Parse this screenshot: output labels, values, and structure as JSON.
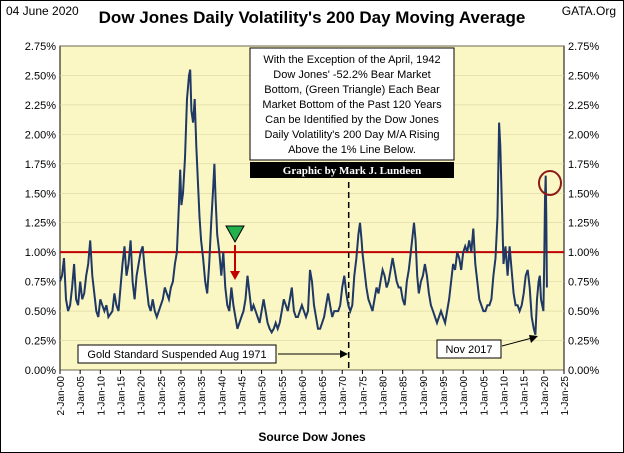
{
  "header": {
    "date": "04 June 2020",
    "title": "Dow Jones Daily Volatility's 200 Day Moving Average",
    "source": "GATA.Org"
  },
  "annotations": {
    "box_lines": [
      "With the Exception of the April, 1942",
      "Dow Jones' -52.2% Bear Market",
      "Bottom, (Green Triangle) Each Bear",
      "Market Bottom of the Past 120 Years",
      "Can be Identified by the Dow Jones",
      "Daily Volatility's 200 Day M/A Rising",
      "Above the 1% Line Below."
    ],
    "credit": "Graphic by Mark J. Lundeen",
    "gold": "Gold Standard Suspended Aug 1971",
    "nov": "Nov 2017"
  },
  "chart_data": {
    "type": "line",
    "xlabel": "Source Dow Jones",
    "ylabel": "",
    "x_tick_labels": [
      "2-Jan-00",
      "1-Jan-05",
      "1-Jan-10",
      "1-Jan-15",
      "1-Jan-20",
      "1-Jan-25",
      "1-Jan-30",
      "1-Jan-35",
      "1-Jan-40",
      "1-Jan-45",
      "1-Jan-50",
      "1-Jan-55",
      "1-Jan-60",
      "1-Jan-65",
      "1-Jan-70",
      "1-Jan-75",
      "1-Jan-80",
      "1-Jan-85",
      "1-Jan-90",
      "1-Jan-95",
      "1-Jan-00",
      "1-Jan-05",
      "1-Jan-10",
      "1-Jan-15",
      "1-Jan-20",
      "1-Jan-25"
    ],
    "x_tick_years": [
      1900,
      1905,
      1910,
      1915,
      1920,
      1925,
      1930,
      1935,
      1940,
      1945,
      1950,
      1955,
      1960,
      1965,
      1970,
      1975,
      1980,
      1985,
      1990,
      1995,
      2000,
      2005,
      2010,
      2015,
      2020,
      2025
    ],
    "xlim": [
      1900,
      2025
    ],
    "y_tick_labels": [
      "0.00%",
      "0.25%",
      "0.50%",
      "0.75%",
      "1.00%",
      "1.25%",
      "1.50%",
      "1.75%",
      "2.00%",
      "2.25%",
      "2.50%",
      "2.75%"
    ],
    "ylim": [
      0,
      2.75
    ],
    "reference_line": {
      "y": 1.0,
      "color": "#c00000"
    },
    "vertical_marker_year": 1971.6,
    "series": [
      {
        "color": "#1f3864",
        "points": [
          [
            1900,
            0.75
          ],
          [
            1900.5,
            0.8
          ],
          [
            1901,
            0.95
          ],
          [
            1901.5,
            0.6
          ],
          [
            1902,
            0.5
          ],
          [
            1902.5,
            0.55
          ],
          [
            1903,
            0.7
          ],
          [
            1903.5,
            0.9
          ],
          [
            1904,
            0.6
          ],
          [
            1904.5,
            0.55
          ],
          [
            1905,
            0.75
          ],
          [
            1905.5,
            0.6
          ],
          [
            1906,
            0.65
          ],
          [
            1906.5,
            0.8
          ],
          [
            1907,
            0.9
          ],
          [
            1907.5,
            1.1
          ],
          [
            1908,
            0.8
          ],
          [
            1908.5,
            0.65
          ],
          [
            1909,
            0.5
          ],
          [
            1909.5,
            0.45
          ],
          [
            1910,
            0.6
          ],
          [
            1910.5,
            0.55
          ],
          [
            1911,
            0.5
          ],
          [
            1911.5,
            0.55
          ],
          [
            1912,
            0.45
          ],
          [
            1913,
            0.5
          ],
          [
            1913.5,
            0.65
          ],
          [
            1914,
            0.55
          ],
          [
            1914.5,
            0.5
          ],
          [
            1915,
            0.7
          ],
          [
            1915.5,
            0.9
          ],
          [
            1916,
            1.05
          ],
          [
            1916.5,
            0.8
          ],
          [
            1917,
            0.9
          ],
          [
            1917.5,
            1.1
          ],
          [
            1918,
            0.75
          ],
          [
            1918.5,
            0.6
          ],
          [
            1919,
            0.8
          ],
          [
            1919.5,
            0.9
          ],
          [
            1920,
            1.0
          ],
          [
            1920.5,
            1.05
          ],
          [
            1921,
            0.85
          ],
          [
            1921.5,
            0.7
          ],
          [
            1922,
            0.55
          ],
          [
            1922.5,
            0.5
          ],
          [
            1923,
            0.6
          ],
          [
            1923.5,
            0.5
          ],
          [
            1924,
            0.45
          ],
          [
            1924.5,
            0.5
          ],
          [
            1925,
            0.55
          ],
          [
            1925.5,
            0.6
          ],
          [
            1926,
            0.7
          ],
          [
            1926.5,
            0.65
          ],
          [
            1927,
            0.6
          ],
          [
            1927.5,
            0.7
          ],
          [
            1928,
            0.75
          ],
          [
            1928.5,
            0.9
          ],
          [
            1929,
            1.0
          ],
          [
            1929.5,
            1.4
          ],
          [
            1929.8,
            1.7
          ],
          [
            1930.1,
            1.4
          ],
          [
            1930.5,
            1.5
          ],
          [
            1931,
            1.8
          ],
          [
            1931.5,
            2.3
          ],
          [
            1932,
            2.5
          ],
          [
            1932.3,
            2.55
          ],
          [
            1932.6,
            2.2
          ],
          [
            1933,
            2.1
          ],
          [
            1933.4,
            2.3
          ],
          [
            1933.8,
            1.9
          ],
          [
            1934.2,
            1.6
          ],
          [
            1934.6,
            1.3
          ],
          [
            1935,
            1.1
          ],
          [
            1935.5,
            0.95
          ],
          [
            1936,
            0.75
          ],
          [
            1936.5,
            0.65
          ],
          [
            1937,
            0.9
          ],
          [
            1937.5,
            1.25
          ],
          [
            1938,
            1.55
          ],
          [
            1938.3,
            1.75
          ],
          [
            1938.6,
            1.45
          ],
          [
            1939,
            1.15
          ],
          [
            1939.5,
            1.0
          ],
          [
            1940,
            0.8
          ],
          [
            1940.5,
            1.0
          ],
          [
            1941,
            0.7
          ],
          [
            1941.5,
            0.55
          ],
          [
            1942,
            0.5
          ],
          [
            1942.5,
            0.7
          ],
          [
            1943,
            0.55
          ],
          [
            1943.5,
            0.45
          ],
          [
            1944,
            0.35
          ],
          [
            1944.5,
            0.4
          ],
          [
            1945,
            0.45
          ],
          [
            1945.5,
            0.5
          ],
          [
            1946,
            0.6
          ],
          [
            1946.5,
            0.8
          ],
          [
            1947,
            0.65
          ],
          [
            1947.5,
            0.5
          ],
          [
            1948,
            0.55
          ],
          [
            1948.5,
            0.5
          ],
          [
            1949,
            0.45
          ],
          [
            1949.5,
            0.4
          ],
          [
            1950,
            0.5
          ],
          [
            1950.5,
            0.6
          ],
          [
            1951,
            0.5
          ],
          [
            1951.5,
            0.4
          ],
          [
            1952,
            0.35
          ],
          [
            1952.5,
            0.32
          ],
          [
            1953,
            0.35
          ],
          [
            1953.5,
            0.4
          ],
          [
            1954,
            0.35
          ],
          [
            1954.5,
            0.4
          ],
          [
            1955,
            0.5
          ],
          [
            1955.5,
            0.6
          ],
          [
            1956,
            0.55
          ],
          [
            1956.5,
            0.5
          ],
          [
            1957,
            0.6
          ],
          [
            1957.5,
            0.7
          ],
          [
            1958,
            0.5
          ],
          [
            1958.5,
            0.45
          ],
          [
            1959,
            0.45
          ],
          [
            1959.5,
            0.5
          ],
          [
            1960,
            0.55
          ],
          [
            1960.5,
            0.5
          ],
          [
            1961,
            0.45
          ],
          [
            1961.5,
            0.5
          ],
          [
            1962,
            0.85
          ],
          [
            1962.5,
            0.75
          ],
          [
            1963,
            0.55
          ],
          [
            1963.5,
            0.45
          ],
          [
            1964,
            0.35
          ],
          [
            1964.5,
            0.35
          ],
          [
            1965,
            0.4
          ],
          [
            1965.5,
            0.45
          ],
          [
            1966,
            0.55
          ],
          [
            1966.5,
            0.65
          ],
          [
            1967,
            0.55
          ],
          [
            1967.5,
            0.45
          ],
          [
            1968,
            0.5
          ],
          [
            1968.5,
            0.5
          ],
          [
            1969,
            0.5
          ],
          [
            1969.5,
            0.55
          ],
          [
            1970,
            0.7
          ],
          [
            1970.5,
            0.8
          ],
          [
            1971,
            0.65
          ],
          [
            1971.5,
            0.55
          ],
          [
            1972,
            0.5
          ],
          [
            1972.5,
            0.55
          ],
          [
            1973,
            0.8
          ],
          [
            1973.5,
            0.95
          ],
          [
            1974,
            1.15
          ],
          [
            1974.4,
            1.25
          ],
          [
            1974.8,
            1.1
          ],
          [
            1975,
            1.0
          ],
          [
            1975.5,
            0.85
          ],
          [
            1976,
            0.7
          ],
          [
            1976.5,
            0.6
          ],
          [
            1977,
            0.55
          ],
          [
            1977.5,
            0.5
          ],
          [
            1978,
            0.6
          ],
          [
            1978.5,
            0.7
          ],
          [
            1979,
            0.65
          ],
          [
            1979.5,
            0.75
          ],
          [
            1980,
            0.85
          ],
          [
            1980.5,
            0.8
          ],
          [
            1981,
            0.7
          ],
          [
            1981.5,
            0.75
          ],
          [
            1982,
            0.85
          ],
          [
            1982.5,
            0.95
          ],
          [
            1983,
            0.85
          ],
          [
            1983.5,
            0.75
          ],
          [
            1984,
            0.7
          ],
          [
            1984.5,
            0.7
          ],
          [
            1985,
            0.6
          ],
          [
            1985.5,
            0.55
          ],
          [
            1986,
            0.75
          ],
          [
            1986.5,
            0.85
          ],
          [
            1987,
            1.0
          ],
          [
            1987.8,
            1.25
          ],
          [
            1988.2,
            1.1
          ],
          [
            1988.6,
            0.8
          ],
          [
            1989,
            0.65
          ],
          [
            1989.5,
            0.75
          ],
          [
            1990,
            0.8
          ],
          [
            1990.5,
            0.9
          ],
          [
            1991,
            0.8
          ],
          [
            1991.5,
            0.65
          ],
          [
            1992,
            0.55
          ],
          [
            1992.5,
            0.5
          ],
          [
            1993,
            0.45
          ],
          [
            1993.5,
            0.4
          ],
          [
            1994,
            0.45
          ],
          [
            1994.5,
            0.5
          ],
          [
            1995,
            0.45
          ],
          [
            1995.5,
            0.4
          ],
          [
            1996,
            0.5
          ],
          [
            1996.5,
            0.6
          ],
          [
            1997,
            0.75
          ],
          [
            1997.5,
            0.9
          ],
          [
            1998,
            0.85
          ],
          [
            1998.5,
            1.0
          ],
          [
            1999,
            0.95
          ],
          [
            1999.5,
            0.85
          ],
          [
            2000,
            1.0
          ],
          [
            2000.5,
            1.05
          ],
          [
            2001,
            1.0
          ],
          [
            2001.5,
            1.1
          ],
          [
            2002,
            1.0
          ],
          [
            2002.5,
            1.2
          ],
          [
            2003,
            0.9
          ],
          [
            2003.5,
            0.75
          ],
          [
            2004,
            0.6
          ],
          [
            2004.5,
            0.55
          ],
          [
            2005,
            0.5
          ],
          [
            2005.5,
            0.5
          ],
          [
            2006,
            0.55
          ],
          [
            2006.5,
            0.55
          ],
          [
            2007,
            0.6
          ],
          [
            2007.5,
            0.8
          ],
          [
            2008,
            0.95
          ],
          [
            2008.5,
            1.3
          ],
          [
            2008.9,
            2.1
          ],
          [
            2009.2,
            1.9
          ],
          [
            2009.6,
            1.4
          ],
          [
            2010,
            0.9
          ],
          [
            2010.5,
            1.05
          ],
          [
            2011,
            0.8
          ],
          [
            2011.5,
            1.05
          ],
          [
            2012,
            0.85
          ],
          [
            2012.5,
            0.65
          ],
          [
            2013,
            0.55
          ],
          [
            2013.5,
            0.55
          ],
          [
            2014,
            0.5
          ],
          [
            2014.5,
            0.55
          ],
          [
            2015,
            0.65
          ],
          [
            2015.5,
            0.8
          ],
          [
            2016,
            0.85
          ],
          [
            2016.5,
            0.7
          ],
          [
            2017,
            0.45
          ],
          [
            2017.5,
            0.35
          ],
          [
            2017.9,
            0.3
          ],
          [
            2018.3,
            0.6
          ],
          [
            2018.7,
            0.75
          ],
          [
            2019,
            0.8
          ],
          [
            2019.3,
            0.6
          ],
          [
            2019.6,
            0.55
          ],
          [
            2019.9,
            0.5
          ],
          [
            2020.1,
            0.9
          ],
          [
            2020.3,
            1.45
          ],
          [
            2020.45,
            1.65
          ],
          [
            2020.6,
            1.3
          ],
          [
            2020.75,
            0.7
          ]
        ]
      }
    ]
  }
}
